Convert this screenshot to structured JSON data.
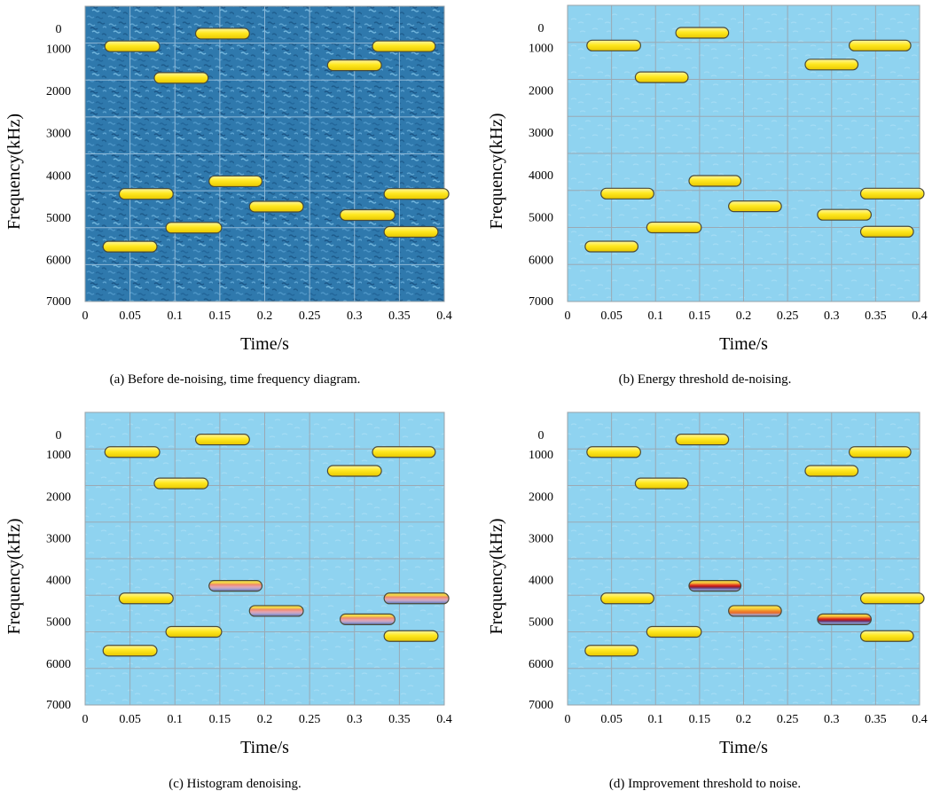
{
  "chart_data": [
    {
      "type": "time-frequency",
      "caption": "(a)  Before de-noising, time frequency diagram.",
      "xlabel": "Time/s",
      "ylabel": "Frequency(kHz)",
      "x_ticks": [
        "0",
        "0.05",
        "0.1",
        "0.15",
        "0.2",
        "0.25",
        "0.3",
        "0.35",
        "0.4"
      ],
      "y_ticks": [
        "0",
        "1000",
        "2000",
        "3000",
        "4000",
        "5000",
        "6000",
        "7000"
      ],
      "xlim": [
        0,
        0.4
      ],
      "ylim": [
        0,
        7000
      ],
      "y_inverted": true,
      "background": "noisy-dark-blue",
      "background_color": "#2f79ad",
      "segments": [
        {
          "t_start": 0.022,
          "t_end": 0.083,
          "freq": 950,
          "style": "yellow"
        },
        {
          "t_start": 0.123,
          "t_end": 0.183,
          "freq": 650,
          "style": "yellow"
        },
        {
          "t_start": 0.077,
          "t_end": 0.137,
          "freq": 1700,
          "style": "yellow"
        },
        {
          "t_start": 0.27,
          "t_end": 0.33,
          "freq": 1400,
          "style": "yellow"
        },
        {
          "t_start": 0.32,
          "t_end": 0.39,
          "freq": 950,
          "style": "yellow"
        },
        {
          "t_start": 0.038,
          "t_end": 0.098,
          "freq": 4450,
          "style": "yellow"
        },
        {
          "t_start": 0.138,
          "t_end": 0.197,
          "freq": 4150,
          "style": "yellow"
        },
        {
          "t_start": 0.09,
          "t_end": 0.152,
          "freq": 5250,
          "style": "yellow"
        },
        {
          "t_start": 0.183,
          "t_end": 0.243,
          "freq": 4750,
          "style": "yellow"
        },
        {
          "t_start": 0.02,
          "t_end": 0.08,
          "freq": 5700,
          "style": "yellow"
        },
        {
          "t_start": 0.284,
          "t_end": 0.345,
          "freq": 4950,
          "style": "yellow"
        },
        {
          "t_start": 0.333,
          "t_end": 0.405,
          "freq": 4450,
          "style": "yellow"
        },
        {
          "t_start": 0.333,
          "t_end": 0.393,
          "freq": 5350,
          "style": "yellow"
        }
      ]
    },
    {
      "type": "time-frequency",
      "caption": "(b)  Energy threshold de-noising.",
      "xlabel": "Time/s",
      "ylabel": "Frequency(kHz)",
      "x_ticks": [
        "0",
        "0.05",
        "0.1",
        "0.15",
        "0.2",
        "0.25",
        "0.3",
        "0.35",
        "0.4"
      ],
      "y_ticks": [
        "0",
        "1000",
        "2000",
        "3000",
        "4000",
        "5000",
        "6000",
        "7000"
      ],
      "xlim": [
        0,
        0.4
      ],
      "ylim": [
        0,
        7000
      ],
      "y_inverted": true,
      "background": "light-blue",
      "background_color": "#8fd3f0",
      "segments": [
        {
          "t_start": 0.022,
          "t_end": 0.083,
          "freq": 950,
          "style": "yellow"
        },
        {
          "t_start": 0.123,
          "t_end": 0.183,
          "freq": 650,
          "style": "yellow"
        },
        {
          "t_start": 0.077,
          "t_end": 0.137,
          "freq": 1700,
          "style": "yellow"
        },
        {
          "t_start": 0.27,
          "t_end": 0.33,
          "freq": 1400,
          "style": "yellow"
        },
        {
          "t_start": 0.32,
          "t_end": 0.39,
          "freq": 950,
          "style": "yellow"
        },
        {
          "t_start": 0.038,
          "t_end": 0.098,
          "freq": 4450,
          "style": "yellow"
        },
        {
          "t_start": 0.138,
          "t_end": 0.197,
          "freq": 4150,
          "style": "yellow"
        },
        {
          "t_start": 0.09,
          "t_end": 0.152,
          "freq": 5250,
          "style": "yellow"
        },
        {
          "t_start": 0.183,
          "t_end": 0.243,
          "freq": 4750,
          "style": "yellow"
        },
        {
          "t_start": 0.02,
          "t_end": 0.08,
          "freq": 5700,
          "style": "yellow"
        },
        {
          "t_start": 0.284,
          "t_end": 0.345,
          "freq": 4950,
          "style": "yellow"
        },
        {
          "t_start": 0.333,
          "t_end": 0.405,
          "freq": 4450,
          "style": "yellow"
        },
        {
          "t_start": 0.333,
          "t_end": 0.393,
          "freq": 5350,
          "style": "yellow"
        }
      ]
    },
    {
      "type": "time-frequency",
      "caption": "(c)  Histogram denoising.",
      "xlabel": "Time/s",
      "ylabel": "Frequency(kHz)",
      "x_ticks": [
        "0",
        "0.05",
        "0.1",
        "0.15",
        "0.2",
        "0.25",
        "0.3",
        "0.35",
        "0.4"
      ],
      "y_ticks": [
        "0",
        "1000",
        "2000",
        "3000",
        "4000",
        "5000",
        "6000",
        "7000"
      ],
      "xlim": [
        0,
        0.4
      ],
      "ylim": [
        0,
        7000
      ],
      "y_inverted": true,
      "background": "light-blue",
      "background_color": "#8fd3f0",
      "segments": [
        {
          "t_start": 0.022,
          "t_end": 0.083,
          "freq": 950,
          "style": "yellow"
        },
        {
          "t_start": 0.123,
          "t_end": 0.183,
          "freq": 650,
          "style": "yellow"
        },
        {
          "t_start": 0.077,
          "t_end": 0.137,
          "freq": 1700,
          "style": "yellow"
        },
        {
          "t_start": 0.27,
          "t_end": 0.33,
          "freq": 1400,
          "style": "yellow"
        },
        {
          "t_start": 0.32,
          "t_end": 0.39,
          "freq": 950,
          "style": "yellow"
        },
        {
          "t_start": 0.038,
          "t_end": 0.098,
          "freq": 4450,
          "style": "yellow"
        },
        {
          "t_start": 0.138,
          "t_end": 0.197,
          "freq": 4150,
          "style": "striped-pink"
        },
        {
          "t_start": 0.09,
          "t_end": 0.152,
          "freq": 5250,
          "style": "yellow"
        },
        {
          "t_start": 0.183,
          "t_end": 0.243,
          "freq": 4750,
          "style": "striped-pink"
        },
        {
          "t_start": 0.02,
          "t_end": 0.08,
          "freq": 5700,
          "style": "yellow"
        },
        {
          "t_start": 0.284,
          "t_end": 0.345,
          "freq": 4950,
          "style": "striped-pink"
        },
        {
          "t_start": 0.333,
          "t_end": 0.405,
          "freq": 4450,
          "style": "striped-pink"
        },
        {
          "t_start": 0.333,
          "t_end": 0.393,
          "freq": 5350,
          "style": "yellow"
        }
      ]
    },
    {
      "type": "time-frequency",
      "caption": "(d)  Improvement threshold to noise.",
      "xlabel": "Time/s",
      "ylabel": "Frequency(kHz)",
      "x_ticks": [
        "0",
        "0.05",
        "0.1",
        "0.15",
        "0.2",
        "0.25",
        "0.3",
        "0.35",
        "0.4"
      ],
      "y_ticks": [
        "0",
        "1000",
        "2000",
        "3000",
        "4000",
        "5000",
        "6000",
        "7000"
      ],
      "xlim": [
        0,
        0.4
      ],
      "ylim": [
        0,
        7000
      ],
      "y_inverted": true,
      "background": "light-blue",
      "background_color": "#8fd3f0",
      "segments": [
        {
          "t_start": 0.022,
          "t_end": 0.083,
          "freq": 950,
          "style": "yellow"
        },
        {
          "t_start": 0.123,
          "t_end": 0.183,
          "freq": 650,
          "style": "yellow"
        },
        {
          "t_start": 0.077,
          "t_end": 0.137,
          "freq": 1700,
          "style": "yellow"
        },
        {
          "t_start": 0.27,
          "t_end": 0.33,
          "freq": 1400,
          "style": "yellow"
        },
        {
          "t_start": 0.32,
          "t_end": 0.39,
          "freq": 950,
          "style": "yellow"
        },
        {
          "t_start": 0.038,
          "t_end": 0.098,
          "freq": 4450,
          "style": "yellow"
        },
        {
          "t_start": 0.138,
          "t_end": 0.197,
          "freq": 4150,
          "style": "striped-red"
        },
        {
          "t_start": 0.09,
          "t_end": 0.152,
          "freq": 5250,
          "style": "yellow"
        },
        {
          "t_start": 0.183,
          "t_end": 0.243,
          "freq": 4750,
          "style": "striped-orange"
        },
        {
          "t_start": 0.02,
          "t_end": 0.08,
          "freq": 5700,
          "style": "yellow"
        },
        {
          "t_start": 0.284,
          "t_end": 0.345,
          "freq": 4950,
          "style": "striped-red"
        },
        {
          "t_start": 0.333,
          "t_end": 0.405,
          "freq": 4450,
          "style": "yellow"
        },
        {
          "t_start": 0.333,
          "t_end": 0.393,
          "freq": 5350,
          "style": "yellow"
        }
      ]
    }
  ]
}
